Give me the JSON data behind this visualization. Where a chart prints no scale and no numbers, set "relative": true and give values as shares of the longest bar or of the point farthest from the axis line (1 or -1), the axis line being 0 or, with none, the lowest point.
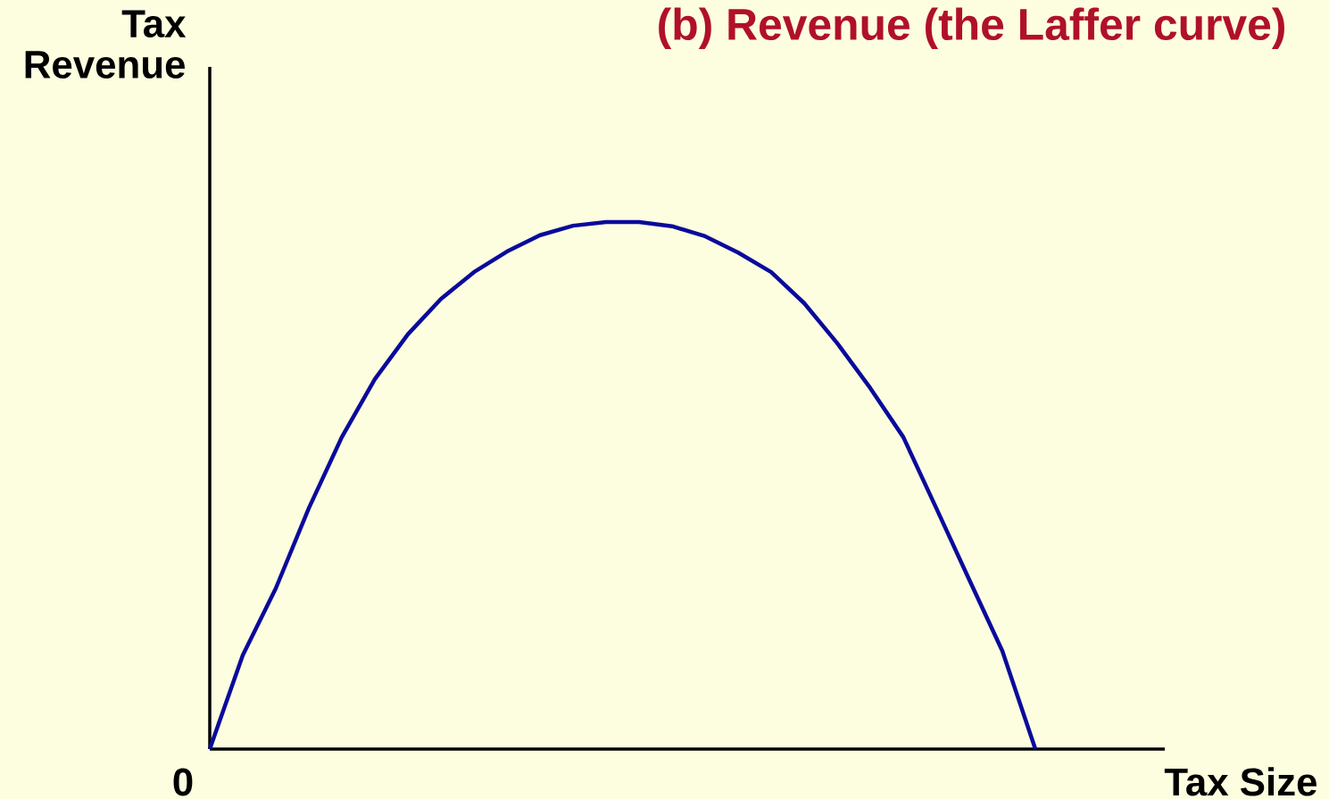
{
  "chart_data": {
    "type": "line",
    "title": "(b) Revenue (the Laffer curve)",
    "xlabel": "Tax Size",
    "ylabel": "Tax Revenue",
    "annotations": [
      "0"
    ],
    "relative": true,
    "color": "#0a0a9c",
    "categories": [
      null,
      null,
      null,
      null,
      null,
      null,
      null,
      null,
      null,
      null,
      null,
      null,
      null,
      null,
      null,
      null,
      null,
      null,
      null,
      null,
      null,
      null,
      null,
      null,
      null,
      null
    ],
    "values": [
      0,
      0.178,
      0.305,
      0.457,
      0.592,
      0.702,
      0.787,
      0.854,
      0.905,
      0.944,
      0.975,
      0.993,
      1,
      1,
      0.992,
      0.973,
      0.942,
      0.905,
      0.846,
      0.77,
      0.685,
      0.592,
      0.457,
      0.321,
      0.186,
      0
    ]
  }
}
